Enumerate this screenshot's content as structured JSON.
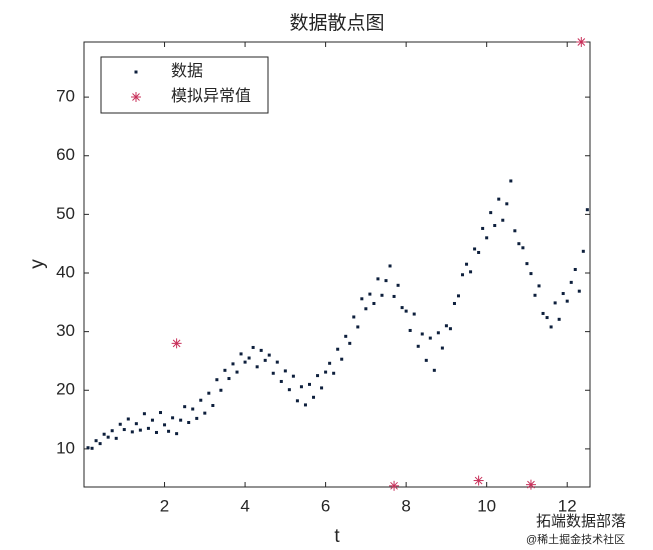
{
  "chart_data": {
    "type": "scatter",
    "title": "数据散点图",
    "x_label": "t",
    "y_label": "y",
    "xlim": [
      0,
      12.566
    ],
    "ylim": [
      3.5,
      79.4
    ],
    "xticks": [
      2,
      4,
      6,
      8,
      10,
      12
    ],
    "yticks": [
      10,
      20,
      30,
      40,
      50,
      60,
      70
    ],
    "grid": false,
    "legend_position": "upper-left",
    "series": [
      {
        "name": "数据",
        "color": "#0d1f3c",
        "marker": "point",
        "x": [
          0.1,
          0.2,
          0.3,
          0.4,
          0.5,
          0.6,
          0.7,
          0.8,
          0.9,
          1.0,
          1.1,
          1.2,
          1.3,
          1.4,
          1.5,
          1.6,
          1.7,
          1.8,
          1.9,
          2.0,
          2.1,
          2.2,
          2.3,
          2.4,
          2.5,
          2.6,
          2.7,
          2.8,
          2.9,
          3.0,
          3.1,
          3.2,
          3.3,
          3.4,
          3.5,
          3.6,
          3.7,
          3.8,
          3.9,
          4.0,
          4.1,
          4.2,
          4.3,
          4.4,
          4.5,
          4.6,
          4.7,
          4.8,
          4.9,
          5.0,
          5.1,
          5.2,
          5.3,
          5.4,
          5.5,
          5.6,
          5.7,
          5.8,
          5.9,
          6.0,
          6.1,
          6.2,
          6.3,
          6.4,
          6.5,
          6.6,
          6.7,
          6.8,
          6.9,
          7.0,
          7.1,
          7.2,
          7.3,
          7.4,
          7.5,
          7.6,
          7.7,
          7.8,
          7.9,
          8.0,
          8.1,
          8.2,
          8.3,
          8.4,
          8.5,
          8.6,
          8.7,
          8.8,
          8.9,
          9.0,
          9.1,
          9.2,
          9.3,
          9.4,
          9.5,
          9.6,
          9.7,
          9.8,
          9.9,
          10.0,
          10.1,
          10.2,
          10.3,
          10.4,
          10.5,
          10.6,
          10.7,
          10.8,
          10.9,
          11.0,
          11.1,
          11.2,
          11.3,
          11.4,
          11.5,
          11.6,
          11.7,
          11.8,
          11.9,
          12.0,
          12.1,
          12.2,
          12.3,
          12.4,
          12.5
        ],
        "values": [
          10.2,
          10.1,
          11.4,
          10.9,
          12.5,
          12.0,
          13.1,
          11.8,
          14.2,
          13.3,
          15.1,
          12.9,
          14.3,
          13.2,
          16.0,
          13.5,
          14.9,
          12.8,
          16.2,
          14.1,
          13.0,
          15.3,
          12.6,
          14.9,
          17.2,
          14.5,
          16.8,
          15.2,
          18.3,
          16.1,
          19.5,
          17.4,
          21.8,
          20.0,
          23.4,
          22.0,
          24.5,
          23.1,
          26.2,
          24.8,
          25.5,
          27.3,
          24.0,
          26.8,
          25.1,
          26.0,
          22.9,
          24.8,
          21.5,
          23.3,
          20.1,
          22.4,
          18.2,
          20.6,
          17.5,
          21.0,
          18.8,
          22.5,
          20.4,
          23.1,
          24.6,
          22.9,
          27.0,
          25.3,
          29.2,
          28.0,
          32.5,
          30.8,
          35.6,
          33.9,
          36.4,
          34.8,
          39.0,
          36.2,
          38.7,
          41.2,
          36.0,
          37.9,
          34.1,
          33.5,
          30.2,
          33.0,
          27.5,
          29.6,
          25.1,
          28.9,
          23.4,
          29.8,
          27.2,
          31.0,
          30.5,
          34.8,
          36.1,
          39.7,
          41.5,
          40.2,
          44.1,
          43.5,
          47.6,
          46.0,
          50.3,
          48.1,
          52.6,
          49.0,
          51.8,
          55.7,
          47.2,
          45.0,
          44.3,
          41.6,
          39.9,
          36.2,
          37.8,
          33.1,
          32.4,
          30.8,
          34.9,
          32.1,
          36.5,
          35.2,
          38.4,
          40.6,
          36.9,
          43.7,
          50.8
        ]
      },
      {
        "name": "模拟异常值",
        "color": "#c8305a",
        "marker": "asterisk",
        "x": [
          2.3,
          7.7,
          9.8,
          11.1,
          12.35
        ],
        "values": [
          28.0,
          3.7,
          4.6,
          3.9,
          79.4
        ]
      }
    ]
  },
  "watermark": {
    "brand": "拓端数据部落",
    "site": "@稀土掘金技术社区"
  }
}
